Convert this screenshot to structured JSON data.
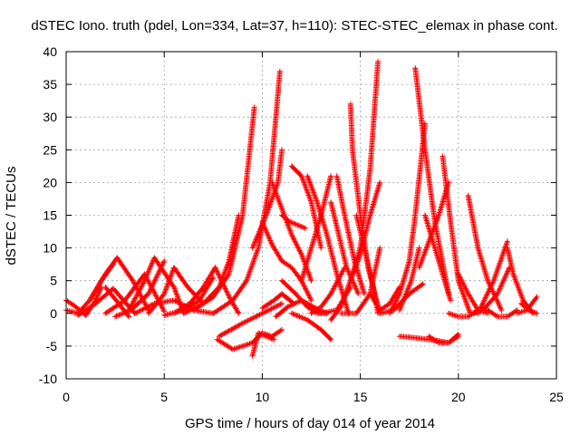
{
  "chart_data": {
    "type": "scatter",
    "title": "dSTEC Iono. truth (pdel, Lon=334, Lat=37, h=110): STEC-STEC_elemax in phase cont.",
    "xlabel": "GPS time / hours of day 014 of year 2014",
    "ylabel": "dSTEC  / TECUs",
    "xlim": [
      0,
      25
    ],
    "ylim": [
      -10,
      40
    ],
    "xticks": [
      0,
      5,
      10,
      15,
      20,
      25
    ],
    "yticks": [
      -10,
      -5,
      0,
      5,
      10,
      15,
      20,
      25,
      30,
      35,
      40
    ],
    "grid": true,
    "marker": "+",
    "color": "#ff0000",
    "series": [
      {
        "x": [
          0.0,
          0.6,
          1.2,
          1.8,
          2.4
        ],
        "y": [
          0.5,
          0.0,
          2.0,
          5.0,
          7.5
        ]
      },
      {
        "x": [
          0.0,
          0.5,
          1.0,
          1.4,
          1.8
        ],
        "y": [
          2.0,
          1.0,
          -0.3,
          1.5,
          4.0
        ]
      },
      {
        "x": [
          0.6,
          1.5,
          2.4,
          3.5
        ],
        "y": [
          -0.3,
          1.5,
          3.8,
          0.0
        ]
      },
      {
        "x": [
          1.2,
          2.0,
          2.6,
          3.4,
          4.2
        ],
        "y": [
          2.0,
          6.0,
          8.5,
          5.0,
          0.5
        ]
      },
      {
        "x": [
          2.0,
          2.6,
          3.2
        ],
        "y": [
          4.0,
          1.8,
          -0.5
        ]
      },
      {
        "x": [
          2.0,
          3.0,
          4.0,
          5.0
        ],
        "y": [
          0.0,
          2.0,
          6.0,
          0.3
        ]
      },
      {
        "x": [
          2.5,
          3.3,
          4.2,
          5.0
        ],
        "y": [
          -0.5,
          0.5,
          3.0,
          8.0
        ]
      },
      {
        "x": [
          3.2,
          4.0,
          4.5,
          5.5,
          6.0
        ],
        "y": [
          0.5,
          5.0,
          8.5,
          4.0,
          0.0
        ]
      },
      {
        "x": [
          3.5,
          4.5,
          5.5,
          6.5,
          7.5
        ],
        "y": [
          0.0,
          1.5,
          2.0,
          0.5,
          0.0
        ]
      },
      {
        "x": [
          4.2,
          5.0,
          5.5,
          6.2,
          7.0
        ],
        "y": [
          0.0,
          3.0,
          7.0,
          4.0,
          1.5
        ]
      },
      {
        "x": [
          5.0,
          6.0,
          6.8,
          7.5
        ],
        "y": [
          -0.3,
          0.5,
          2.0,
          5.5
        ]
      },
      {
        "x": [
          5.5,
          6.3,
          7.0,
          7.6
        ],
        "y": [
          0.0,
          1.5,
          4.0,
          7.0
        ]
      },
      {
        "x": [
          6.0,
          7.0,
          7.8,
          8.3,
          8.8
        ],
        "y": [
          0.0,
          1.5,
          4.0,
          8.0,
          15.0
        ]
      },
      {
        "x": [
          6.5,
          7.5,
          8.3,
          9.0,
          9.6
        ],
        "y": [
          0.5,
          2.5,
          6.0,
          15.0,
          31.5
        ]
      },
      {
        "x": [
          7.6,
          8.4,
          8.8
        ],
        "y": [
          7.0,
          2.0,
          0.0
        ]
      },
      {
        "x": [
          7.5,
          8.5,
          9.2,
          9.8,
          10.4,
          10.9
        ],
        "y": [
          0.0,
          2.0,
          5.0,
          10.0,
          20.0,
          37.0
        ]
      },
      {
        "x": [
          7.7,
          8.5,
          9.5,
          10.0,
          10.5,
          11.0
        ],
        "y": [
          -4.0,
          -5.5,
          -4.5,
          -3.0,
          -3.5,
          -2.5
        ]
      },
      {
        "x": [
          7.8,
          9.0,
          10.0,
          11.0
        ],
        "y": [
          -3.5,
          -1.5,
          0.0,
          1.5
        ]
      },
      {
        "x": [
          9.5,
          9.8,
          10.2,
          10.6
        ],
        "y": [
          -6.5,
          -3.0,
          -3.5,
          -4.0
        ]
      },
      {
        "x": [
          9.5,
          10.2,
          10.8,
          11.0
        ],
        "y": [
          10.0,
          15.0,
          20.0,
          25.0
        ]
      },
      {
        "x": [
          10.0,
          10.5,
          11.0,
          11.5,
          12.0,
          12.5
        ],
        "y": [
          14.0,
          10.5,
          8.0,
          7.0,
          5.0,
          2.0
        ]
      },
      {
        "x": [
          10.0,
          10.6,
          11.0,
          11.6
        ],
        "y": [
          0.8,
          2.0,
          3.0,
          1.5
        ]
      },
      {
        "x": [
          10.5,
          11.0,
          11.5,
          12.0,
          12.5
        ],
        "y": [
          20.0,
          16.0,
          12.0,
          9.0,
          5.0
        ]
      },
      {
        "x": [
          10.7,
          11.3,
          12.0,
          12.6,
          13.3
        ],
        "y": [
          -0.5,
          1.0,
          2.0,
          1.0,
          0.0
        ]
      },
      {
        "x": [
          11.0,
          11.4,
          11.8,
          12.2
        ],
        "y": [
          15.0,
          14.0,
          13.5,
          13.0
        ]
      },
      {
        "x": [
          11.0,
          11.7,
          12.3,
          12.8,
          13.3
        ],
        "y": [
          5.0,
          3.0,
          1.0,
          0.0,
          0.0
        ]
      },
      {
        "x": [
          11.5,
          12.0,
          12.5,
          13.0
        ],
        "y": [
          22.5,
          21.0,
          17.0,
          10.0
        ]
      },
      {
        "x": [
          11.5,
          12.3,
          13.0,
          13.5
        ],
        "y": [
          0.0,
          -1.0,
          -2.5,
          -4.0
        ]
      },
      {
        "x": [
          12.0,
          12.5,
          13.0,
          13.5
        ],
        "y": [
          5.0,
          10.0,
          15.0,
          21.0
        ]
      },
      {
        "x": [
          12.3,
          12.8,
          13.3,
          13.8,
          14.4
        ],
        "y": [
          21.0,
          17.0,
          12.0,
          6.0,
          0.0
        ]
      },
      {
        "x": [
          12.0,
          13.0,
          13.8,
          14.5
        ],
        "y": [
          2.0,
          0.0,
          0.5,
          4.0
        ]
      },
      {
        "x": [
          12.5,
          13.0,
          13.5,
          14.2
        ],
        "y": [
          0.0,
          1.0,
          3.0,
          7.0
        ]
      },
      {
        "x": [
          13.5,
          14.0,
          14.5,
          15.0
        ],
        "y": [
          -1.0,
          1.0,
          5.0,
          10.0
        ]
      },
      {
        "x": [
          13.5,
          13.9,
          14.3,
          14.9
        ],
        "y": [
          17.0,
          12.0,
          7.0,
          3.0
        ]
      },
      {
        "x": [
          13.8,
          14.2,
          14.7,
          15.2
        ],
        "y": [
          21.0,
          15.0,
          8.0,
          3.0
        ]
      },
      {
        "x": [
          14.5,
          14.6,
          15.0,
          15.4,
          16.0
        ],
        "y": [
          32.0,
          25.0,
          15.0,
          7.0,
          0.0
        ]
      },
      {
        "x": [
          14.5,
          15.0,
          15.5,
          16.0
        ],
        "y": [
          5.0,
          9.0,
          15.0,
          20.0
        ]
      },
      {
        "x": [
          14.8,
          15.2,
          15.6,
          15.9
        ],
        "y": [
          15.0,
          10.0,
          5.0,
          0.0
        ]
      },
      {
        "x": [
          14.0,
          14.8,
          15.5,
          16.0
        ],
        "y": [
          0.0,
          0.0,
          3.0,
          10.0
        ]
      },
      {
        "x": [
          15.0,
          15.5,
          15.9
        ],
        "y": [
          10.0,
          22.0,
          38.5
        ]
      },
      {
        "x": [
          15.5,
          16.0,
          16.5,
          17.0
        ],
        "y": [
          3.0,
          0.5,
          1.5,
          4.0
        ]
      },
      {
        "x": [
          16.0,
          16.7,
          17.5,
          18.2
        ],
        "y": [
          0.0,
          0.5,
          3.0,
          4.5
        ]
      },
      {
        "x": [
          16.5,
          17.0,
          17.5,
          17.8,
          18.3
        ],
        "y": [
          0.0,
          3.0,
          8.0,
          15.0,
          29.0
        ]
      },
      {
        "x": [
          17.0,
          17.6,
          18.0
        ],
        "y": [
          0.5,
          5.0,
          10.0
        ]
      },
      {
        "x": [
          17.8,
          18.3,
          18.8,
          19.5
        ],
        "y": [
          37.5,
          25.0,
          14.0,
          3.0
        ]
      },
      {
        "x": [
          18.0,
          18.5,
          19.0,
          19.5
        ],
        "y": [
          7.0,
          11.0,
          15.0,
          20.0
        ]
      },
      {
        "x": [
          18.3,
          18.8,
          19.2,
          19.6
        ],
        "y": [
          15.0,
          10.0,
          6.0,
          2.0
        ]
      },
      {
        "x": [
          17.0,
          18.0,
          19.0,
          19.5,
          20.0
        ],
        "y": [
          -3.5,
          -3.8,
          -4.2,
          -4.5,
          -3.5
        ]
      },
      {
        "x": [
          18.5,
          19.0,
          19.5,
          20.0
        ],
        "y": [
          -3.5,
          -4.5,
          -4.5,
          -3.2
        ]
      },
      {
        "x": [
          19.2,
          19.6,
          20.0,
          20.6,
          21.5
        ],
        "y": [
          24.0,
          14.0,
          5.0,
          0.0,
          0.5
        ]
      },
      {
        "x": [
          19.5,
          20.0,
          20.5,
          21.0
        ],
        "y": [
          0.0,
          -0.5,
          -0.5,
          0.5
        ]
      },
      {
        "x": [
          20.0,
          20.5,
          21.0,
          21.5
        ],
        "y": [
          6.0,
          3.0,
          0.5,
          0.0
        ]
      },
      {
        "x": [
          20.5,
          21.0,
          21.5,
          22.2
        ],
        "y": [
          18.0,
          10.0,
          5.0,
          0.5
        ]
      },
      {
        "x": [
          20.8,
          21.4,
          22.0,
          22.6
        ],
        "y": [
          0.0,
          1.0,
          3.0,
          7.0
        ]
      },
      {
        "x": [
          21.0,
          21.8,
          22.5
        ],
        "y": [
          0.0,
          5.0,
          11.0
        ]
      },
      {
        "x": [
          21.5,
          22.0,
          22.5,
          23.0
        ],
        "y": [
          0.5,
          -0.5,
          -0.5,
          0.5
        ]
      },
      {
        "x": [
          22.5,
          22.8,
          23.3,
          23.8
        ],
        "y": [
          10.0,
          6.0,
          2.0,
          0.0
        ]
      },
      {
        "x": [
          23.0,
          23.5,
          24.0
        ],
        "y": [
          0.0,
          0.5,
          2.5
        ]
      },
      {
        "x": [
          23.2,
          23.6,
          24.0
        ],
        "y": [
          1.5,
          0.5,
          0.0
        ]
      }
    ]
  }
}
